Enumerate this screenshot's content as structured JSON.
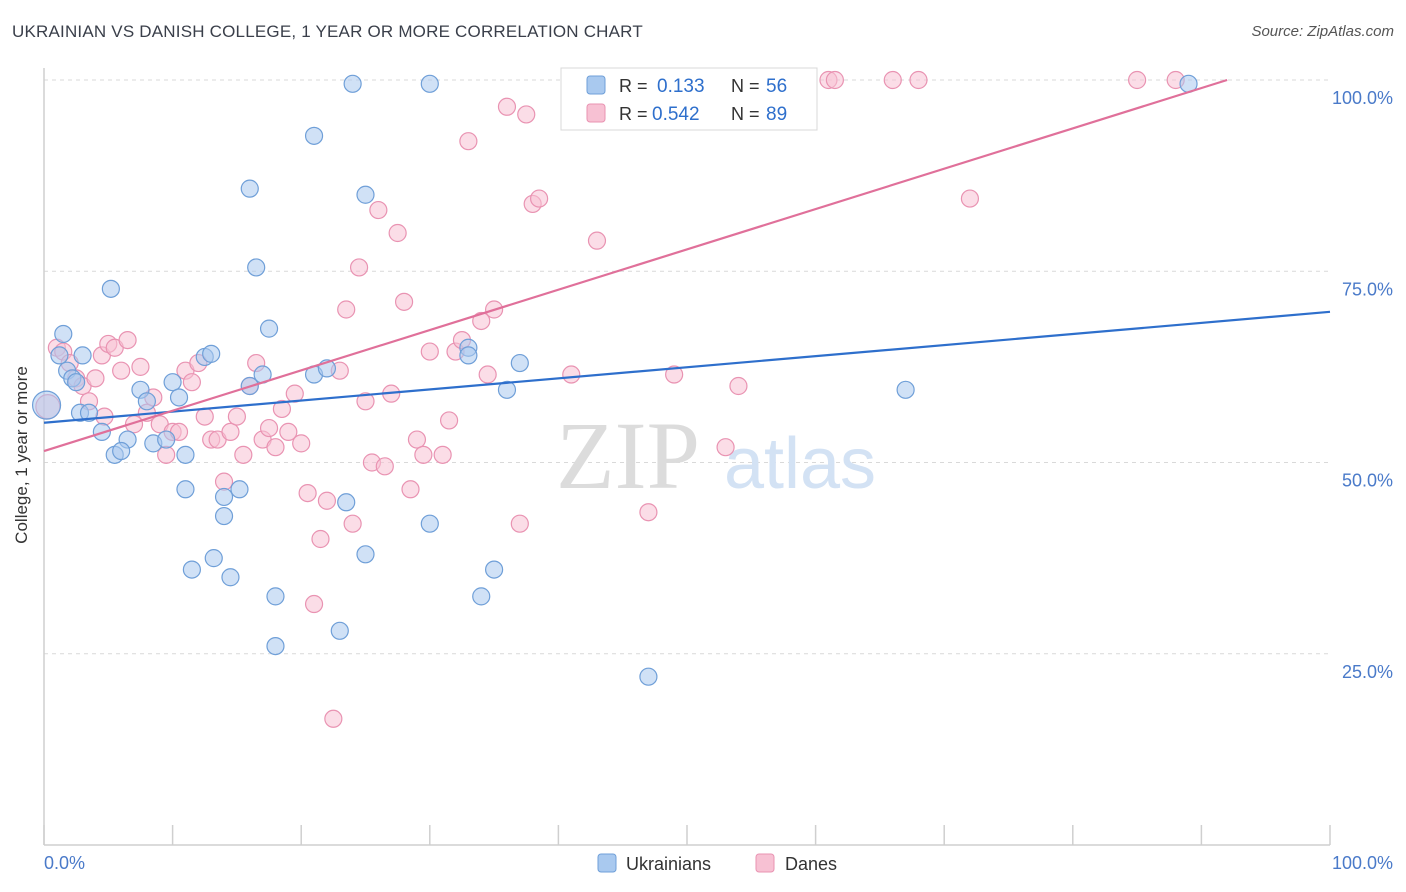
{
  "header": {
    "title": "UKRAINIAN VS DANISH COLLEGE, 1 YEAR OR MORE CORRELATION CHART",
    "source": "Source: ZipAtlas.com"
  },
  "watermark": {
    "zip": "ZIP",
    "atlas": "atlas"
  },
  "legend_top": [
    {
      "r_label": "R =",
      "r_value": "0.133",
      "n_label": "N =",
      "n_value": "56"
    },
    {
      "r_label": "R =",
      "r_value": "0.542",
      "n_label": "N =",
      "n_value": "89"
    }
  ],
  "legend_bottom": [
    "Ukrainians",
    "Danes"
  ],
  "colors": {
    "blue_fill": "#a9c9ef",
    "blue_stroke": "#6f9fd8",
    "blue_line": "#2e6fcc",
    "pink_fill": "#f7c1d3",
    "pink_stroke": "#e993b2",
    "pink_line": "#e0709a",
    "tick_label": "#4a7ac9",
    "grid": "#d9d9d9"
  },
  "chart_data": {
    "type": "scatter",
    "title": "UKRAINIAN VS DANISH COLLEGE, 1 YEAR OR MORE CORRELATION CHART",
    "xlabel": "",
    "ylabel": "College, 1 year or more",
    "xlim": [
      0,
      100
    ],
    "ylim": [
      0,
      100
    ],
    "x_tick_labels": [
      "0.0%",
      "100.0%"
    ],
    "y_tick_labels": [
      "25.0%",
      "50.0%",
      "75.0%",
      "100.0%"
    ],
    "y_ticks": [
      25,
      50,
      75,
      100
    ],
    "grid": true,
    "series": [
      {
        "name": "Ukrainians",
        "r": 0.133,
        "n": 56,
        "trend": [
          [
            0,
            55.2
          ],
          [
            100,
            69.7
          ]
        ],
        "points": [
          [
            1.5,
            66.8
          ],
          [
            1.2,
            64.0
          ],
          [
            1.8,
            62.0
          ],
          [
            2.2,
            61.0
          ],
          [
            2.8,
            56.5
          ],
          [
            3.5,
            56.5
          ],
          [
            4.5,
            54.0
          ],
          [
            5.5,
            51.0
          ],
          [
            6.5,
            53.0
          ],
          [
            3,
            64
          ],
          [
            2.5,
            60.5
          ],
          [
            5.2,
            72.7
          ],
          [
            6.0,
            51.5
          ],
          [
            7.5,
            59.5
          ],
          [
            8.0,
            58.0
          ],
          [
            8.5,
            52.5
          ],
          [
            9.5,
            53
          ],
          [
            10,
            60.5
          ],
          [
            10.5,
            58.5
          ],
          [
            11,
            46.5
          ],
          [
            11,
            51
          ],
          [
            11.5,
            36
          ],
          [
            12.5,
            63.8
          ],
          [
            13,
            64.2
          ],
          [
            13.2,
            37.5
          ],
          [
            14,
            45.5
          ],
          [
            14,
            43
          ],
          [
            14.5,
            35
          ],
          [
            15.2,
            46.5
          ],
          [
            16,
            60
          ],
          [
            16,
            85.8
          ],
          [
            16.5,
            75.5
          ],
          [
            17,
            61.5
          ],
          [
            17.5,
            67.5
          ],
          [
            18,
            26
          ],
          [
            18,
            32.5
          ],
          [
            21,
            61.5
          ],
          [
            21,
            92.7
          ],
          [
            22,
            62.3
          ],
          [
            23,
            28
          ],
          [
            23.5,
            44.8
          ],
          [
            24,
            99.5
          ],
          [
            25,
            85
          ],
          [
            25,
            38
          ],
          [
            30,
            99.5
          ],
          [
            30,
            42
          ],
          [
            33,
            65
          ],
          [
            33,
            64
          ],
          [
            34,
            32.5
          ],
          [
            35,
            36
          ],
          [
            36,
            59.5
          ],
          [
            37,
            63
          ],
          [
            47,
            22
          ],
          [
            67,
            59.5
          ],
          [
            89,
            99.5
          ],
          [
            0.2,
            57.5
          ]
        ]
      },
      {
        "name": "Danes",
        "r": 0.542,
        "n": 89,
        "trend": [
          [
            0,
            51.5
          ],
          [
            92,
            100
          ]
        ],
        "points": [
          [
            0.3,
            57.3
          ],
          [
            1,
            65
          ],
          [
            1.5,
            64.5
          ],
          [
            2,
            63
          ],
          [
            2.5,
            61
          ],
          [
            3,
            60
          ],
          [
            3.5,
            58
          ],
          [
            4,
            61
          ],
          [
            4.5,
            64
          ],
          [
            5,
            65.5
          ],
          [
            5.5,
            65
          ],
          [
            6,
            62
          ],
          [
            6.5,
            66
          ],
          [
            7,
            55
          ],
          [
            7.5,
            62.5
          ],
          [
            8,
            56.5
          ],
          [
            8.5,
            58.5
          ],
          [
            9,
            55
          ],
          [
            9.5,
            51
          ],
          [
            10,
            54
          ],
          [
            10.5,
            54
          ],
          [
            11,
            62
          ],
          [
            11.5,
            60.5
          ],
          [
            12,
            63
          ],
          [
            12.5,
            56
          ],
          [
            13,
            53
          ],
          [
            13.5,
            53
          ],
          [
            14,
            47.5
          ],
          [
            14.5,
            54
          ],
          [
            15,
            56
          ],
          [
            15.5,
            51
          ],
          [
            16,
            60
          ],
          [
            16.5,
            63
          ],
          [
            17,
            53
          ],
          [
            17.5,
            54.5
          ],
          [
            18,
            52
          ],
          [
            18.5,
            57
          ],
          [
            19,
            54
          ],
          [
            19.5,
            59
          ],
          [
            20,
            52.5
          ],
          [
            20.5,
            46
          ],
          [
            21,
            31.5
          ],
          [
            21.5,
            40
          ],
          [
            22,
            45
          ],
          [
            22.5,
            16.5
          ],
          [
            23,
            62
          ],
          [
            23.5,
            70
          ],
          [
            24,
            42
          ],
          [
            24.5,
            75.5
          ],
          [
            25,
            58
          ],
          [
            25.5,
            50
          ],
          [
            26,
            83
          ],
          [
            26.5,
            49.5
          ],
          [
            27,
            59
          ],
          [
            27.5,
            80
          ],
          [
            28,
            71
          ],
          [
            28.5,
            46.5
          ],
          [
            29,
            53
          ],
          [
            29.5,
            51
          ],
          [
            30,
            64.5
          ],
          [
            31,
            51
          ],
          [
            31.5,
            55.5
          ],
          [
            32,
            64.5
          ],
          [
            32.5,
            66
          ],
          [
            33,
            92
          ],
          [
            34,
            68.5
          ],
          [
            34.5,
            61.5
          ],
          [
            35,
            70
          ],
          [
            36,
            96.5
          ],
          [
            37,
            42
          ],
          [
            37.5,
            95.5
          ],
          [
            38,
            83.8
          ],
          [
            38.5,
            84.5
          ],
          [
            41,
            61.5
          ],
          [
            43,
            79
          ],
          [
            44,
            100
          ],
          [
            47,
            43.5
          ],
          [
            49,
            61.5
          ],
          [
            53,
            52
          ],
          [
            54,
            60
          ],
          [
            59,
            100
          ],
          [
            61,
            100
          ],
          [
            61.5,
            100
          ],
          [
            66,
            100
          ],
          [
            68,
            100
          ],
          [
            72,
            84.5
          ],
          [
            85,
            100
          ],
          [
            88,
            100
          ],
          [
            4.7,
            56
          ]
        ]
      }
    ]
  }
}
